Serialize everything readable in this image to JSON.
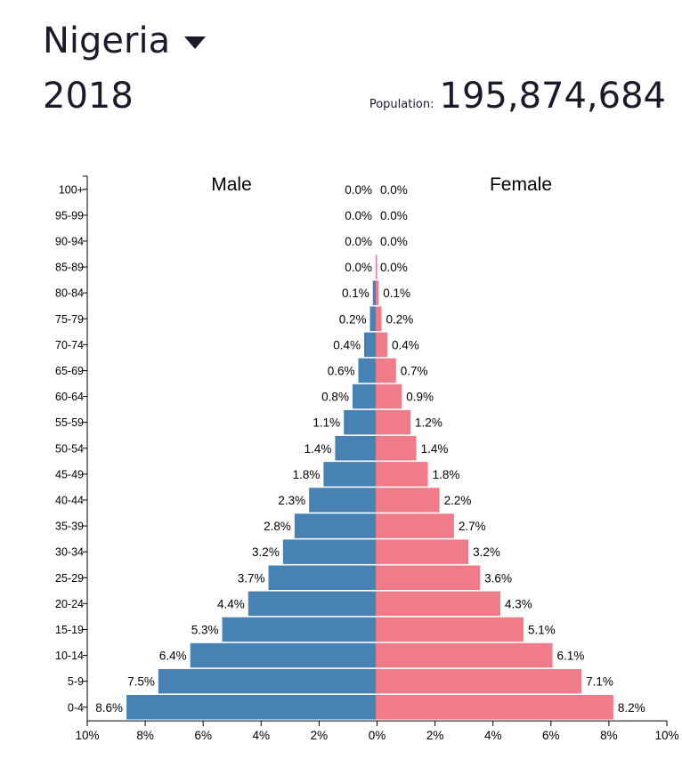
{
  "header": {
    "country": "Nigeria",
    "year": "2018",
    "population_label": "Population:",
    "population_value": "195,874,684"
  },
  "colors": {
    "male": "#4682b4",
    "female": "#f07c8a"
  },
  "chart_data": {
    "type": "bar",
    "orientation": "horizontal",
    "subtype": "population-pyramid",
    "categories": [
      "100+",
      "95-99",
      "90-94",
      "85-89",
      "80-84",
      "75-79",
      "70-74",
      "65-69",
      "60-64",
      "55-59",
      "50-54",
      "45-49",
      "40-44",
      "35-39",
      "30-34",
      "25-29",
      "20-24",
      "15-19",
      "10-14",
      "5-9",
      "0-4"
    ],
    "series": [
      {
        "name": "Male",
        "values": [
          0.0,
          0.0,
          0.0,
          0.0,
          0.1,
          0.2,
          0.4,
          0.6,
          0.8,
          1.1,
          1.4,
          1.8,
          2.3,
          2.8,
          3.2,
          3.7,
          4.4,
          5.3,
          6.4,
          7.5,
          8.6
        ],
        "labels": [
          "0.0%",
          "0.0%",
          "0.0%",
          "0.0%",
          "0.1%",
          "0.2%",
          "0.4%",
          "0.6%",
          "0.8%",
          "1.1%",
          "1.4%",
          "1.8%",
          "2.3%",
          "2.8%",
          "3.2%",
          "3.7%",
          "4.4%",
          "5.3%",
          "6.4%",
          "7.5%",
          "8.6%"
        ]
      },
      {
        "name": "Female",
        "values": [
          0.0,
          0.0,
          0.0,
          0.0,
          0.1,
          0.2,
          0.4,
          0.7,
          0.9,
          1.2,
          1.4,
          1.8,
          2.2,
          2.7,
          3.2,
          3.6,
          4.3,
          5.1,
          6.1,
          7.1,
          8.2
        ],
        "labels": [
          "0.0%",
          "0.0%",
          "0.0%",
          "0.0%",
          "0.1%",
          "0.2%",
          "0.4%",
          "0.7%",
          "0.9%",
          "1.2%",
          "1.4%",
          "1.8%",
          "2.2%",
          "2.7%",
          "3.2%",
          "3.6%",
          "4.3%",
          "5.1%",
          "6.1%",
          "7.1%",
          "8.2%"
        ]
      }
    ],
    "xlim": [
      -10,
      10
    ],
    "xticks": [
      -10,
      -8,
      -6,
      -4,
      -2,
      0,
      2,
      4,
      6,
      8,
      10
    ],
    "xtick_labels": [
      "10%",
      "8%",
      "6%",
      "4%",
      "2%",
      "0%",
      "2%",
      "4%",
      "6%",
      "8%",
      "10%"
    ],
    "grid": false,
    "legend": "inline"
  }
}
